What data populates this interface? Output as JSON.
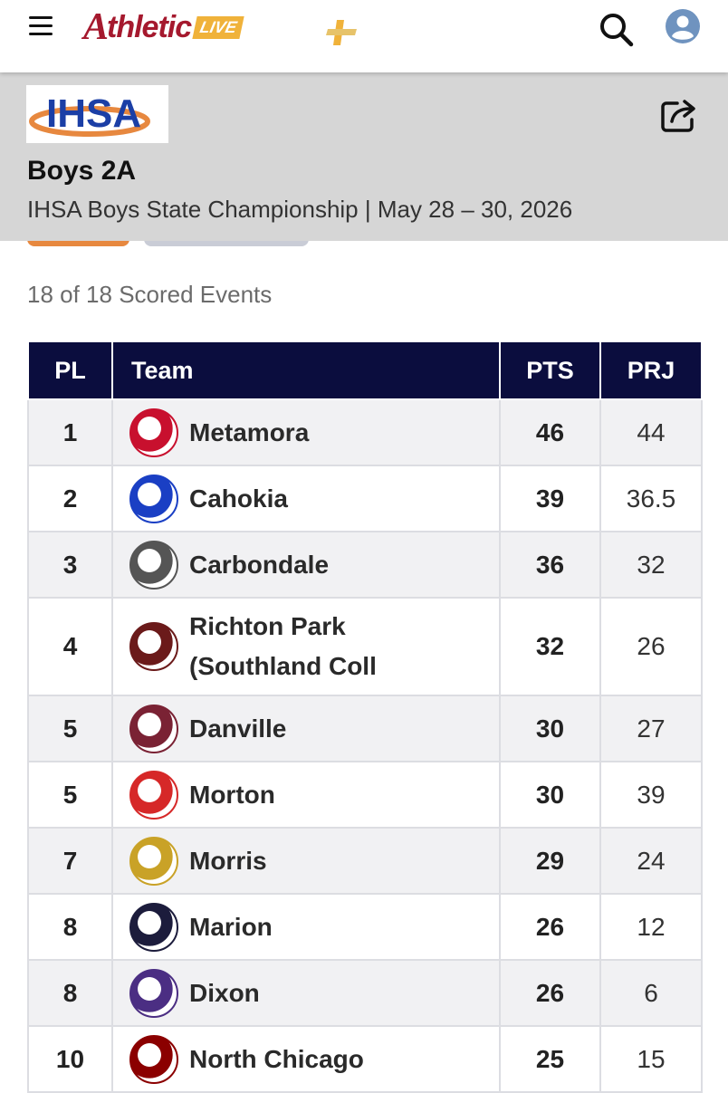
{
  "app": {
    "brand_main": "A",
    "brand_rest": "thletic",
    "brand_live": "LIVE"
  },
  "event": {
    "logo_text": "IHSA",
    "title": "Boys 2A",
    "subtitle": "IHSA Boys State Championship | May 28 – 30, 2026",
    "scored_summary": "18 of 18 Scored Events"
  },
  "table": {
    "headers": {
      "pl": "PL",
      "team": "Team",
      "pts": "PTS",
      "prj": "PRJ"
    },
    "rows": [
      {
        "pl": "1",
        "team": "Metamora",
        "pts": "46",
        "prj": "44",
        "logo_color": "#c8102e",
        "logo_icon": "cardinal-logo-icon"
      },
      {
        "pl": "2",
        "team": "Cahokia",
        "pts": "39",
        "prj": "36.5",
        "logo_color": "#1a3fc4",
        "logo_icon": "cahokia-logo-icon"
      },
      {
        "pl": "3",
        "team": "Carbondale",
        "pts": "36",
        "prj": "32",
        "logo_color": "#555555",
        "logo_icon": "terrier-logo-icon"
      },
      {
        "pl": "4",
        "team": "Richton Park\n(Southland Coll",
        "pts": "32",
        "prj": "26",
        "logo_color": "#6b1a1a",
        "logo_icon": "eagle-logo-icon"
      },
      {
        "pl": "5",
        "team": "Danville",
        "pts": "30",
        "prj": "27",
        "logo_color": "#7a2234",
        "logo_icon": "viking-logo-icon"
      },
      {
        "pl": "5",
        "team": "Morton",
        "pts": "30",
        "prj": "39",
        "logo_color": "#d62828",
        "logo_icon": "morton-m-logo-icon"
      },
      {
        "pl": "7",
        "team": "Morris",
        "pts": "29",
        "prj": "24",
        "logo_color": "#c9a227",
        "logo_icon": "winged-m-logo-icon"
      },
      {
        "pl": "8",
        "team": "Marion",
        "pts": "26",
        "prj": "12",
        "logo_color": "#1c1c3c",
        "logo_icon": "marion-logo-icon"
      },
      {
        "pl": "8",
        "team": "Dixon",
        "pts": "26",
        "prj": "6",
        "logo_color": "#4b2e83",
        "logo_icon": "dixon-d-logo-icon"
      },
      {
        "pl": "10",
        "team": "North Chicago",
        "pts": "25",
        "prj": "15",
        "logo_color": "#8b0000",
        "logo_icon": "hawk-logo-icon"
      }
    ]
  },
  "colors": {
    "brand": "#a5192e",
    "header_bg": "#0b0d3e",
    "accent_orange": "#e7883f",
    "panel_bg": "#d6d6d6"
  }
}
